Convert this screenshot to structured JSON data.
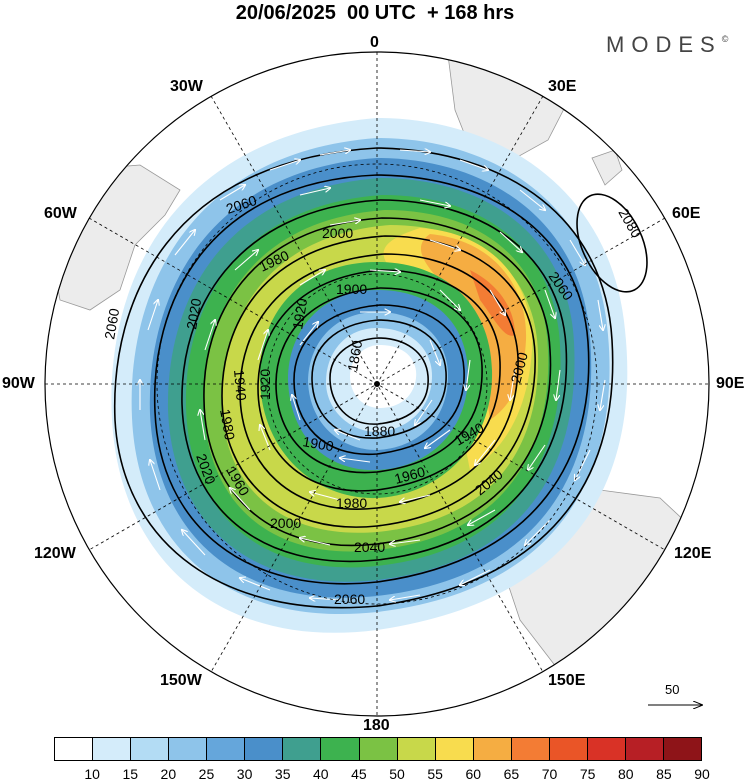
{
  "title": "20/06/2025  00 UTC  + 168 hrs",
  "brand": {
    "name": "MODES",
    "mark": "©"
  },
  "longitude_labels": {
    "top": "0",
    "right": "90E",
    "bottom": "180",
    "left": "90W",
    "e30": "30E",
    "e60": "60E",
    "e120": "120E",
    "e150": "150E",
    "w30": "30W",
    "w60": "60W",
    "w120": "120W",
    "w150": "150W"
  },
  "contour_labels": [
    "2060",
    "2000",
    "1980",
    "1900",
    "1920",
    "1860",
    "1880",
    "1900",
    "1920",
    "1940",
    "1960",
    "1980",
    "2000",
    "2020",
    "2040",
    "2060",
    "2080",
    "2060",
    "2000",
    "2040",
    "1940",
    "1960",
    "1980",
    "2020",
    "2060"
  ],
  "scale_vector": {
    "label": "50"
  },
  "colorbar": {
    "labels": [
      "10",
      "15",
      "20",
      "25",
      "30",
      "35",
      "40",
      "45",
      "50",
      "55",
      "60",
      "65",
      "70",
      "75",
      "80",
      "85",
      "90"
    ],
    "colors": [
      "#ffffff",
      "#d4ecfa",
      "#b3dcf4",
      "#8ec4ea",
      "#65a6db",
      "#4a8fca",
      "#3f9f8f",
      "#3db24f",
      "#7bc244",
      "#c8d84a",
      "#f8dc4e",
      "#f5ad42",
      "#f37c34",
      "#ea5527",
      "#d93226",
      "#b71f25",
      "#8e1418"
    ]
  },
  "colors": {
    "land": "#ececec",
    "coast": "#999999",
    "contour": "#000000",
    "wind_arrow": "#ffffff"
  }
}
